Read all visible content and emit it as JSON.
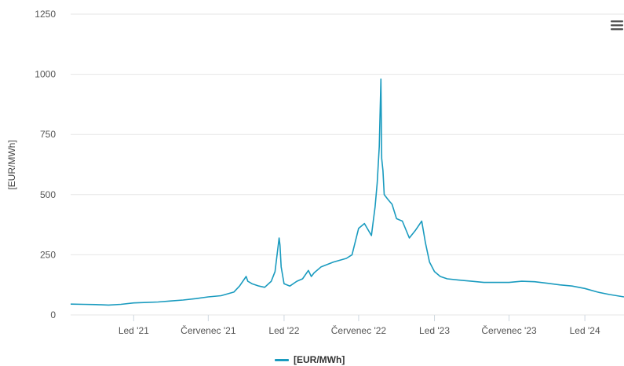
{
  "menu": {
    "icon": "hamburger-menu-icon"
  },
  "legend": {
    "label": "[EUR/MWh]"
  },
  "chart_data": {
    "type": "line",
    "title": "",
    "xlabel": "",
    "ylabel": "[EUR/MWh]",
    "ylim": [
      0,
      1250
    ],
    "yticks": [
      0,
      250,
      500,
      750,
      1000,
      1250
    ],
    "xlim": [
      "2020-08-01",
      "2024-04-05"
    ],
    "x_ticks": [
      {
        "date": "2021-01-01",
        "label": "Led '21"
      },
      {
        "date": "2021-07-01",
        "label": "Červenec '21"
      },
      {
        "date": "2022-01-01",
        "label": "Led '22"
      },
      {
        "date": "2022-07-01",
        "label": "Červenec '22"
      },
      {
        "date": "2023-01-01",
        "label": "Led '23"
      },
      {
        "date": "2023-07-01",
        "label": "Červenec '23"
      },
      {
        "date": "2024-01-01",
        "label": "Led '24"
      }
    ],
    "grid": true,
    "legend_position": "bottom",
    "colors": {
      "series": "#1a9bbf",
      "grid": "#e6e6e6",
      "text": "#555555"
    },
    "series": [
      {
        "name": "[EUR/MWh]",
        "x": [
          "2020-08-01",
          "2020-09-01",
          "2020-10-01",
          "2020-11-01",
          "2020-12-01",
          "2021-01-01",
          "2021-02-01",
          "2021-03-01",
          "2021-04-01",
          "2021-05-01",
          "2021-06-01",
          "2021-07-01",
          "2021-08-01",
          "2021-09-01",
          "2021-09-15",
          "2021-10-01",
          "2021-10-05",
          "2021-10-15",
          "2021-11-01",
          "2021-11-15",
          "2021-12-01",
          "2021-12-10",
          "2021-12-20",
          "2021-12-22",
          "2021-12-25",
          "2022-01-01",
          "2022-01-15",
          "2022-02-01",
          "2022-02-15",
          "2022-03-01",
          "2022-03-08",
          "2022-03-15",
          "2022-04-01",
          "2022-05-01",
          "2022-06-01",
          "2022-06-15",
          "2022-07-01",
          "2022-07-15",
          "2022-08-01",
          "2022-08-10",
          "2022-08-15",
          "2022-08-20",
          "2022-08-24",
          "2022-08-26",
          "2022-08-29",
          "2022-09-01",
          "2022-09-10",
          "2022-09-20",
          "2022-10-01",
          "2022-10-15",
          "2022-11-01",
          "2022-11-15",
          "2022-12-01",
          "2022-12-10",
          "2022-12-20",
          "2023-01-01",
          "2023-01-15",
          "2023-02-01",
          "2023-03-01",
          "2023-04-01",
          "2023-05-01",
          "2023-06-01",
          "2023-07-01",
          "2023-08-01",
          "2023-09-01",
          "2023-10-01",
          "2023-11-01",
          "2023-12-01",
          "2024-01-01",
          "2024-02-01",
          "2024-03-01",
          "2024-04-05"
        ],
        "values": [
          45,
          44,
          43,
          41,
          44,
          50,
          52,
          54,
          58,
          62,
          68,
          75,
          80,
          95,
          120,
          160,
          140,
          130,
          120,
          115,
          140,
          180,
          320,
          290,
          200,
          130,
          120,
          140,
          150,
          185,
          160,
          175,
          200,
          220,
          235,
          250,
          360,
          380,
          330,
          450,
          550,
          700,
          980,
          650,
          600,
          500,
          480,
          460,
          400,
          390,
          320,
          350,
          390,
          300,
          220,
          180,
          160,
          150,
          145,
          140,
          135,
          135,
          135,
          140,
          138,
          132,
          125,
          120,
          110,
          95,
          85,
          75
        ]
      }
    ]
  }
}
